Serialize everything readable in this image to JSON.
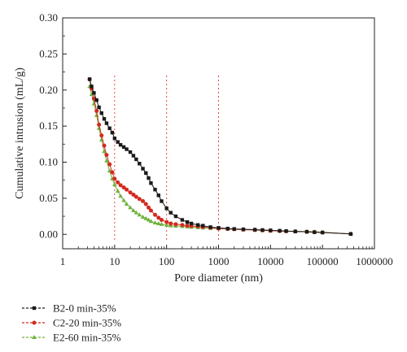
{
  "chart_data": {
    "type": "line",
    "xscale": "log",
    "xlabel": "Pore diameter (nm)",
    "ylabel": "Cumulative intrusion (mL/g)",
    "xlim": [
      1,
      1000000
    ],
    "ylim": [
      -0.02,
      0.3
    ],
    "x_ticks": [
      "1",
      "10",
      "100",
      "1000",
      "10000",
      "100000",
      "1000000"
    ],
    "y_ticks": [
      "0.00",
      "0.05",
      "0.10",
      "0.15",
      "0.20",
      "0.25",
      "0.30"
    ],
    "grid": false,
    "reference_lines_x": [
      10,
      100,
      1000
    ],
    "legend_position": "bottom-left",
    "series": [
      {
        "name": "B2-0 min-35%",
        "color": "#1a1a1a",
        "marker": "square",
        "x": [
          3.3,
          3.6,
          4,
          4.5,
          5,
          5.6,
          6.3,
          7,
          8,
          9,
          10,
          11.5,
          13,
          15,
          17,
          20,
          23,
          26,
          30,
          35,
          40,
          45,
          50,
          60,
          70,
          80,
          100,
          120,
          150,
          200,
          250,
          300,
          400,
          500,
          700,
          1000,
          1500,
          2000,
          3000,
          5000,
          7000,
          10000,
          15000,
          20000,
          30000,
          50000,
          70000,
          100000,
          350000
        ],
        "y": [
          0.215,
          0.205,
          0.196,
          0.186,
          0.176,
          0.168,
          0.16,
          0.154,
          0.147,
          0.141,
          0.133,
          0.128,
          0.124,
          0.121,
          0.118,
          0.114,
          0.109,
          0.104,
          0.098,
          0.091,
          0.085,
          0.078,
          0.071,
          0.062,
          0.054,
          0.046,
          0.036,
          0.03,
          0.025,
          0.02,
          0.017,
          0.015,
          0.013,
          0.012,
          0.01,
          0.009,
          0.008,
          0.0075,
          0.007,
          0.0065,
          0.006,
          0.0055,
          0.005,
          0.0045,
          0.004,
          0.0035,
          0.003,
          0.0025,
          0.0005
        ]
      },
      {
        "name": "C2-20 min-35%",
        "color": "#d42a1e",
        "marker": "circle",
        "x": [
          3.3,
          3.6,
          4,
          4.5,
          5,
          5.6,
          6.3,
          7,
          8,
          9,
          10,
          11.5,
          13,
          15,
          17,
          20,
          23,
          26,
          30,
          35,
          40,
          45,
          50,
          60,
          70,
          80,
          100,
          120,
          150,
          200,
          250,
          300,
          400,
          500,
          700,
          1000,
          1500,
          2000,
          3000,
          5000,
          7000,
          10000,
          15000,
          20000,
          30000,
          50000,
          70000,
          100000,
          350000
        ],
        "y": [
          0.215,
          0.202,
          0.188,
          0.171,
          0.152,
          0.137,
          0.123,
          0.11,
          0.097,
          0.086,
          0.077,
          0.072,
          0.068,
          0.065,
          0.062,
          0.058,
          0.055,
          0.052,
          0.049,
          0.046,
          0.042,
          0.037,
          0.033,
          0.027,
          0.023,
          0.02,
          0.017,
          0.015,
          0.014,
          0.013,
          0.012,
          0.0115,
          0.011,
          0.01,
          0.009,
          0.008,
          0.0075,
          0.007,
          0.0065,
          0.006,
          0.0055,
          0.005,
          0.0045,
          0.0042,
          0.004,
          0.0035,
          0.003,
          0.0025,
          0.0005
        ]
      },
      {
        "name": "E2-60 min-35%",
        "color": "#6fb33e",
        "marker": "triangle",
        "x": [
          3.3,
          3.6,
          4,
          4.5,
          5,
          5.6,
          6.3,
          7,
          8,
          9,
          10,
          11.5,
          13,
          15,
          17,
          20,
          23,
          26,
          30,
          35,
          40,
          45,
          50,
          60,
          70,
          80,
          100,
          120,
          150,
          200,
          250,
          300,
          400,
          500,
          700,
          1000,
          1500,
          2000,
          3000,
          5000,
          7000,
          10000,
          15000,
          20000,
          30000,
          50000,
          70000,
          100000,
          350000
        ],
        "y": [
          0.205,
          0.194,
          0.181,
          0.165,
          0.147,
          0.131,
          0.115,
          0.102,
          0.088,
          0.077,
          0.069,
          0.06,
          0.053,
          0.047,
          0.042,
          0.037,
          0.033,
          0.03,
          0.027,
          0.024,
          0.022,
          0.02,
          0.018,
          0.016,
          0.015,
          0.014,
          0.013,
          0.012,
          0.0115,
          0.011,
          0.0105,
          0.01,
          0.0095,
          0.009,
          0.0085,
          0.008,
          0.0075,
          0.007,
          0.0065,
          0.006,
          0.0055,
          0.005,
          0.0048,
          0.0045,
          0.0042,
          0.004,
          0.0035,
          0.003,
          0.0005
        ]
      }
    ]
  }
}
